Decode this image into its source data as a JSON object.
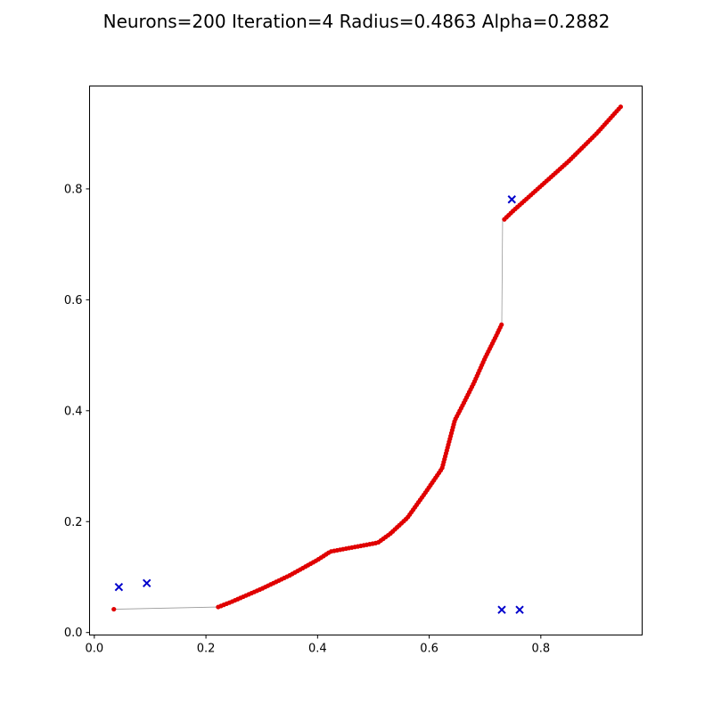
{
  "chart_data": {
    "type": "scatter",
    "title": "Neurons=200 Iteration=4 Radius=0.4863 Alpha=0.2882",
    "xlabel": "",
    "ylabel": "",
    "xlim": [
      -0.0085,
      0.9815
    ],
    "ylim": [
      -0.0045,
      0.9855
    ],
    "x_ticks": [
      0.0,
      0.2,
      0.4,
      0.6,
      0.8
    ],
    "x_tick_labels": [
      "0.0",
      "0.2",
      "0.4",
      "0.6",
      "0.8"
    ],
    "y_ticks": [
      0.0,
      0.2,
      0.4,
      0.6,
      0.8
    ],
    "y_tick_labels": [
      "0.0",
      "0.2",
      "0.4",
      "0.6",
      "0.8"
    ],
    "grid": false,
    "colors": {
      "neurons": "#e00000",
      "path": "#999999",
      "samples": "#0000cc"
    },
    "neuron_path_vertices": [
      [
        0.035,
        0.042
      ],
      [
        0.222,
        0.046
      ],
      [
        0.245,
        0.055
      ],
      [
        0.3,
        0.079
      ],
      [
        0.35,
        0.103
      ],
      [
        0.4,
        0.131
      ],
      [
        0.423,
        0.146
      ],
      [
        0.508,
        0.162
      ],
      [
        0.53,
        0.178
      ],
      [
        0.561,
        0.207
      ],
      [
        0.593,
        0.252
      ],
      [
        0.623,
        0.296
      ],
      [
        0.646,
        0.383
      ],
      [
        0.66,
        0.41
      ],
      [
        0.68,
        0.45
      ],
      [
        0.7,
        0.495
      ],
      [
        0.72,
        0.535
      ],
      [
        0.73,
        0.556
      ],
      [
        0.7315,
        0.742
      ],
      [
        0.75,
        0.76
      ],
      [
        0.8,
        0.805
      ],
      [
        0.85,
        0.85
      ],
      [
        0.9,
        0.9
      ],
      [
        0.943,
        0.948
      ]
    ],
    "neuron_count": 200,
    "samples": [
      {
        "x": 0.044,
        "y": 0.082
      },
      {
        "x": 0.094,
        "y": 0.089
      },
      {
        "x": 0.748,
        "y": 0.781
      },
      {
        "x": 0.73,
        "y": 0.041
      },
      {
        "x": 0.762,
        "y": 0.041
      }
    ]
  }
}
